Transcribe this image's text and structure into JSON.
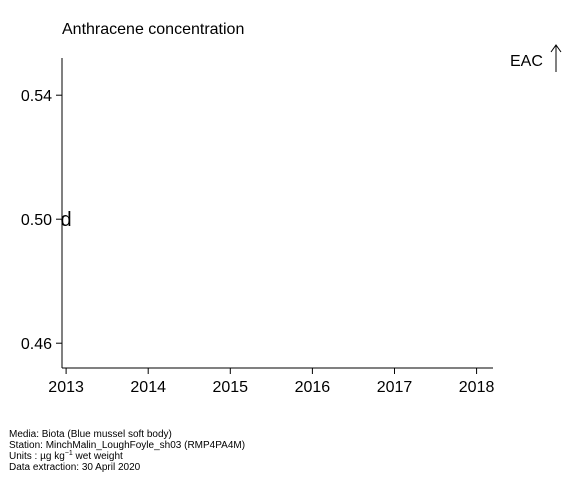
{
  "chart_data": {
    "type": "scatter",
    "title": "Anthracene concentration",
    "x_ticks": [
      "2013",
      "2014",
      "2015",
      "2016",
      "2017",
      "2018"
    ],
    "y_ticks": [
      "0.46",
      "0.50",
      "0.54"
    ],
    "xlim": [
      2012.95,
      2018.2
    ],
    "ylim": [
      0.452,
      0.552
    ],
    "points": [
      {
        "x": 2013,
        "y": 0.5,
        "symbol": "d"
      }
    ],
    "reference_line": {
      "label": "EAC",
      "direction": "above plot (arrow up)"
    },
    "grid": false,
    "legend": "none"
  },
  "footer": {
    "media": "Media: Biota (Blue mussel soft body)",
    "station": "Station: MinchMalin_LoughFoyle_sh03 (RMP4PA4M)",
    "units_prefix": "Units : µg kg",
    "units_sup": "−1",
    "units_suffix": " wet weight",
    "extraction": "Data extraction: 30 April 2020"
  }
}
